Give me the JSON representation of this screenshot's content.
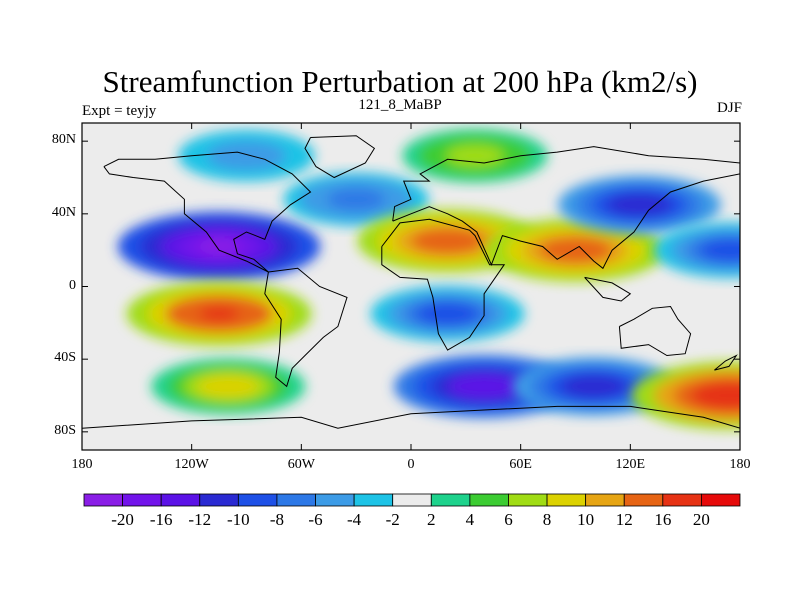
{
  "chart_data": {
    "type": "heatmap",
    "title": "Streamfunction Perturbation at 200 hPa (km2/s)",
    "subtitle_left": "Expt = teyjy",
    "subtitle_center": "121_8_MaBP",
    "subtitle_right": "DJF",
    "x_ticks": [
      "180",
      "120W",
      "60W",
      "0",
      "60E",
      "120E",
      "180"
    ],
    "x_tick_values": [
      -180,
      -120,
      -60,
      0,
      60,
      120,
      180
    ],
    "y_ticks": [
      "80N",
      "40N",
      "0",
      "40S",
      "80S"
    ],
    "y_tick_values": [
      80,
      40,
      0,
      -40,
      -80
    ],
    "xlim": [
      -180,
      180
    ],
    "ylim": [
      -90,
      90
    ],
    "colorbar": {
      "labels": [
        "-20",
        "-16",
        "-12",
        "-10",
        "-8",
        "-6",
        "-4",
        "-2",
        "2",
        "4",
        "6",
        "8",
        "10",
        "12",
        "16",
        "20"
      ],
      "colors": [
        "#8a1ee6",
        "#7213ea",
        "#5b12e6",
        "#2a2ad2",
        "#1e50e6",
        "#2d78e6",
        "#3c9be6",
        "#1ec3e6",
        "#ececec",
        "#1ed28c",
        "#3ccc32",
        "#a0dc14",
        "#dcd200",
        "#e6a514",
        "#e66414",
        "#e63214",
        "#e60a0a"
      ]
    },
    "field_centers": [
      {
        "lon": -105,
        "lat": 22,
        "value": -21,
        "region": "eastern Pacific north"
      },
      {
        "lon": -105,
        "lat": -15,
        "value": 17,
        "region": "eastern Pacific south"
      },
      {
        "lon": -100,
        "lat": -55,
        "value": 10,
        "region": "south Pacific mid-latitude"
      },
      {
        "lon": -90,
        "lat": 72,
        "value": -6,
        "region": "north America arctic"
      },
      {
        "lon": -30,
        "lat": 48,
        "value": -8,
        "region": "north Atlantic"
      },
      {
        "lon": 35,
        "lat": 72,
        "value": 8,
        "region": "arctic Eurasia"
      },
      {
        "lon": 20,
        "lat": 25,
        "value": 16,
        "region": "north Africa"
      },
      {
        "lon": 90,
        "lat": 20,
        "value": 16,
        "region": "south Asia"
      },
      {
        "lon": 125,
        "lat": 45,
        "value": -12,
        "region": "east Asia"
      },
      {
        "lon": 20,
        "lat": -15,
        "value": -10,
        "region": "southern Africa"
      },
      {
        "lon": 40,
        "lat": -55,
        "value": -16,
        "region": "southern Indian Ocean"
      },
      {
        "lon": 100,
        "lat": -55,
        "value": -12,
        "region": "south east Indian Ocean"
      },
      {
        "lon": 175,
        "lat": -60,
        "value": 20,
        "region": "south Pacific west"
      },
      {
        "lon": 175,
        "lat": 20,
        "value": -10,
        "region": "west Pacific north"
      }
    ]
  }
}
